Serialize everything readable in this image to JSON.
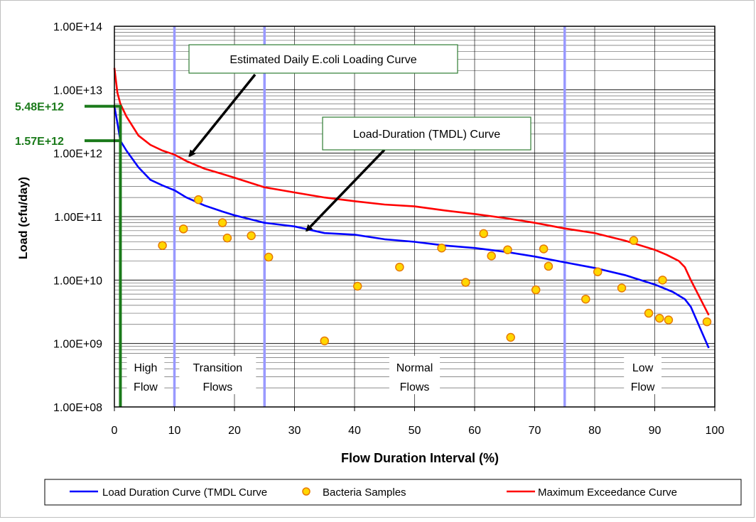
{
  "chart_data": {
    "type": "line",
    "title": "",
    "xlabel": "Flow Duration Interval (%)",
    "ylabel": "Load (cfu/day)",
    "xlim": [
      0,
      100
    ],
    "ylim": [
      100000000,
      100000000000000
    ],
    "y_scale": "log",
    "grid": true,
    "x_ticks": [
      {
        "value": 0,
        "label": "0"
      },
      {
        "value": 10,
        "label": "10"
      },
      {
        "value": 20,
        "label": "20"
      },
      {
        "value": 30,
        "label": "30"
      },
      {
        "value": 40,
        "label": "40"
      },
      {
        "value": 50,
        "label": "50"
      },
      {
        "value": 60,
        "label": "60"
      },
      {
        "value": 70,
        "label": "70"
      },
      {
        "value": 80,
        "label": "80"
      },
      {
        "value": 90,
        "label": "90"
      },
      {
        "value": 100,
        "label": "100"
      }
    ],
    "y_ticks": [
      {
        "value": 100000000,
        "label": "1.00E+08"
      },
      {
        "value": 1000000000,
        "label": "1.00E+09"
      },
      {
        "value": 10000000000,
        "label": "1.00E+10"
      },
      {
        "value": 100000000000,
        "label": "1.00E+11"
      },
      {
        "value": 1000000000000,
        "label": "1.00E+12"
      },
      {
        "value": 10000000000000,
        "label": "1.00E+13"
      },
      {
        "value": 100000000000000,
        "label": "1.00E+14"
      }
    ],
    "series": [
      {
        "name": "Load Duration Curve (TMDL Curve",
        "color": "#0000ff",
        "kind": "line",
        "x": [
          0,
          0.5,
          1,
          2,
          4,
          6,
          8,
          10,
          12,
          15,
          18,
          20,
          25,
          30,
          35,
          40,
          45,
          50,
          55,
          60,
          65,
          70,
          75,
          80,
          85,
          90,
          93,
          95,
          96,
          99
        ],
        "y": [
          5480000000000,
          3000000000000,
          1570000000000,
          1100000000000,
          600000000000,
          380000000000,
          310000000000,
          260000000000,
          200000000000,
          150000000000,
          120000000000,
          105000000000,
          80000000000,
          70000000000,
          55000000000,
          52000000000,
          44000000000,
          40000000000,
          35000000000,
          32000000000,
          28000000000,
          23500000000,
          19000000000,
          15500000000,
          12000000000,
          8500000000,
          6500000000,
          5000000000,
          3800000000,
          850000000
        ]
      },
      {
        "name": "Maximum Exceedance Curve",
        "color": "#ff0000",
        "kind": "line",
        "x": [
          0,
          0.5,
          1,
          2,
          4,
          6,
          8,
          10,
          12,
          15,
          18,
          20,
          25,
          30,
          35,
          40,
          45,
          50,
          55,
          60,
          65,
          70,
          75,
          80,
          85,
          90,
          92,
          94,
          95,
          96,
          99
        ],
        "y": [
          22000000000000,
          9000000000000,
          6000000000000,
          3800000000000,
          1900000000000,
          1350000000000,
          1100000000000,
          950000000000,
          750000000000,
          570000000000,
          470000000000,
          410000000000,
          290000000000,
          240000000000,
          200000000000,
          175000000000,
          155000000000,
          145000000000,
          125000000000,
          110000000000,
          95000000000,
          80000000000,
          65000000000,
          55000000000,
          42000000000,
          30000000000,
          25000000000,
          20000000000,
          16000000000,
          10000000000,
          2800000000
        ]
      },
      {
        "name": "Bacteria Samples",
        "color": "#ffd700",
        "kind": "scatter",
        "points": [
          [
            8,
            35000000000
          ],
          [
            11.5,
            64000000000
          ],
          [
            14,
            185000000000
          ],
          [
            18,
            80000000000
          ],
          [
            18.8,
            46000000000
          ],
          [
            22.8,
            50000000000
          ],
          [
            25.7,
            23000000000
          ],
          [
            35,
            1100000000
          ],
          [
            40.5,
            8000000000
          ],
          [
            47.5,
            16000000000
          ],
          [
            54.5,
            32000000000
          ],
          [
            58.5,
            9200000000
          ],
          [
            61.5,
            54000000000
          ],
          [
            62.8,
            24000000000
          ],
          [
            65.5,
            30000000000
          ],
          [
            66,
            1250000000
          ],
          [
            70.2,
            7000000000
          ],
          [
            71.5,
            31000000000
          ],
          [
            72.3,
            16500000000
          ],
          [
            78.5,
            5000000000
          ],
          [
            80.5,
            13500000000
          ],
          [
            84.5,
            7500000000
          ],
          [
            86.5,
            42000000000
          ],
          [
            89,
            3000000000
          ],
          [
            90.8,
            2500000000
          ],
          [
            91.3,
            10000000000
          ],
          [
            92.3,
            2350000000
          ],
          [
            98.7,
            2200000000
          ]
        ]
      }
    ],
    "zone_dividers": [
      10,
      25,
      75
    ],
    "zones": [
      {
        "label_lines": [
          "High",
          "Flow"
        ],
        "x": 5.2
      },
      {
        "label_lines": [
          "Transition",
          "Flows"
        ],
        "x": 17.2
      },
      {
        "label_lines": [
          "Normal",
          "Flows"
        ],
        "x": 50
      },
      {
        "label_lines": [
          "Low",
          "Flow"
        ],
        "x": 88
      }
    ],
    "vertical_marker_x": 1,
    "markers": [
      {
        "label": "5.48E+12",
        "value": 5480000000000,
        "color": "#1a7a1a"
      },
      {
        "label": "1.57E+12",
        "value": 1570000000000,
        "color": "#1a7a1a"
      }
    ],
    "annotations": [
      {
        "text": "Estimated Daily E.coli Loading Curve",
        "target": [
          12.5,
          900000000000
        ]
      },
      {
        "text": "Load-Duration (TMDL) Curve",
        "target": [
          32,
          60000000000
        ]
      }
    ],
    "legend": {
      "position": "bottom",
      "entries": [
        {
          "label": "Load Duration Curve (TMDL Curve",
          "color": "#0000ff",
          "kind": "line"
        },
        {
          "label": "Bacteria Samples",
          "color": "#ffd700",
          "kind": "dot"
        },
        {
          "label": "Maximum Exceedance Curve",
          "color": "#ff0000",
          "kind": "line"
        }
      ]
    }
  }
}
